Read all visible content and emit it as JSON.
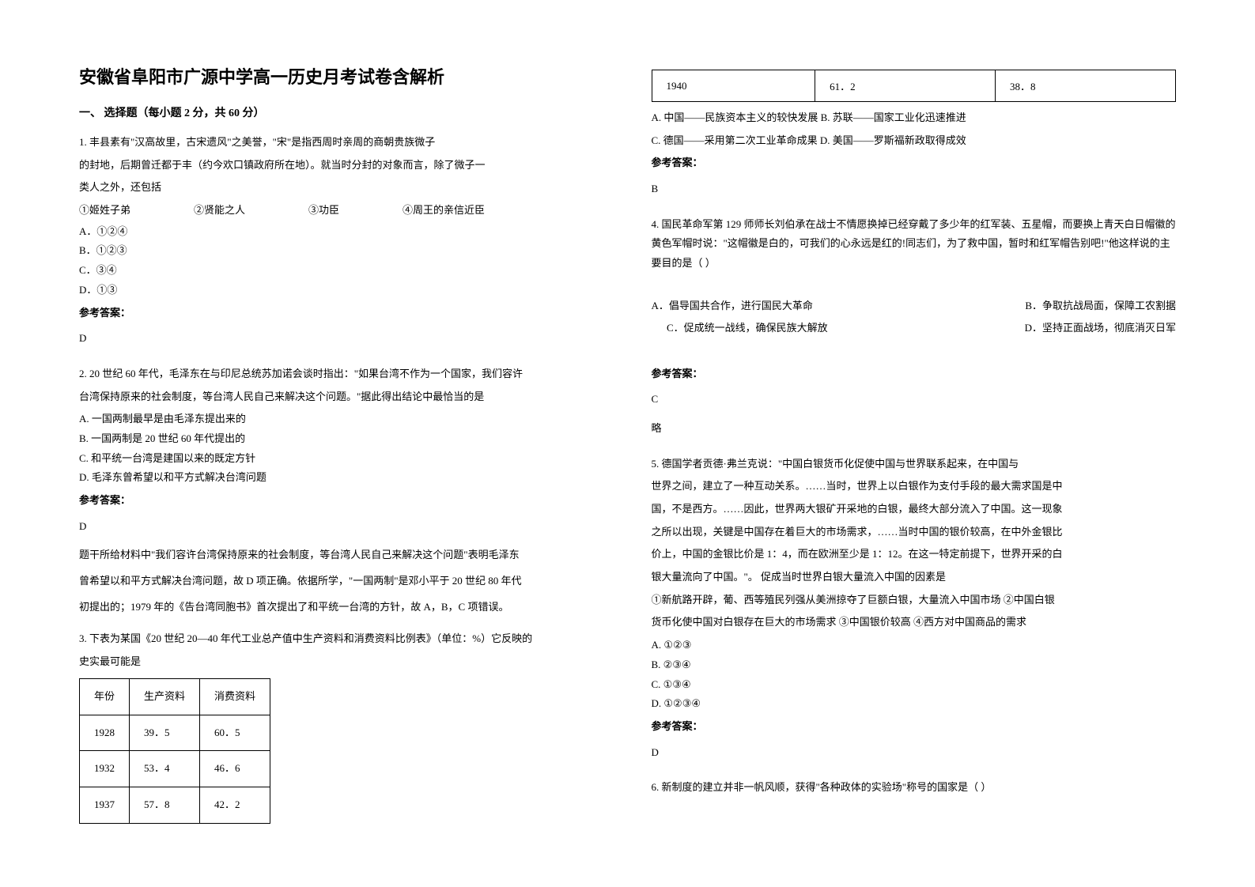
{
  "title": "安徽省阜阳市广源中学高一历史月考试卷含解析",
  "section1": "一、 选择题（每小题 2 分，共 60 分）",
  "q1": {
    "text1": "1. 丰县素有\"汉高故里，古宋遗风\"之美誉，\"宋\"是指西周时亲周的商朝贵族微子",
    "text2": "的封地，后期曾迁都于丰（约今欢口镇政府所在地）。就当时分封的对象而言，除了微子一",
    "text3": "类人之外，还包括",
    "choices": {
      "c1": "①姬姓子弟",
      "c2": "②贤能之人",
      "c3": "③功臣",
      "c4": "④周王的亲信近臣"
    },
    "optA": "A．①②④",
    "optB": "B．①②③",
    "optC": "C．③④",
    "optD": "D．①③",
    "answerLabel": "参考答案：",
    "answer": "D"
  },
  "q2": {
    "text1": "2. 20 世纪 60 年代，毛泽东在与印尼总统苏加诺会谈时指出：\"如果台湾不作为一个国家，我们容许",
    "text2": "台湾保持原来的社会制度，等台湾人民自己来解决这个问题。\"据此得出结论中最恰当的是",
    "optA": "A. 一国两制最早是由毛泽东提出来的",
    "optB": "B. 一国两制是 20 世纪 60 年代提出的",
    "optC": "C. 和平统一台湾是建国以来的既定方针",
    "optD": "D. 毛泽东曾希望以和平方式解决台湾问题",
    "answerLabel": "参考答案：",
    "answer": "D",
    "exp1": "题干所给材料中\"我们容许台湾保持原来的社会制度，等台湾人民自己来解决这个问题\"表明毛泽东",
    "exp2": "曾希望以和平方式解决台湾问题，故 D 项正确。依据所学，\"一国两制\"是邓小平于 20 世纪 80 年代",
    "exp3": "初提出的；1979 年的《告台湾同胞书》首次提出了和平统一台湾的方针，故 A，B，C 项错误。"
  },
  "q3": {
    "text1": "3. 下表为某国《20 世纪 20—40 年代工业总产值中生产资料和消费资料比例表》（单位：%）它反映的",
    "text2": "史实最可能是",
    "table": {
      "header": {
        "col1": "年份",
        "col2": "生产资料",
        "col3": "消费资料"
      },
      "rows": [
        {
          "col1": "1928",
          "col2": "39．5",
          "col3": "60．5"
        },
        {
          "col1": "1932",
          "col2": "53．4",
          "col3": "46．6"
        },
        {
          "col1": "1937",
          "col2": "57．8",
          "col3": "42．2"
        },
        {
          "col1": "1940",
          "col2": "61．2",
          "col3": "38．8"
        }
      ]
    },
    "optA": "A. 中国——民族资本主义的较快发展 B. 苏联——国家工业化迅速推进",
    "optC": "C. 德国——采用第二次工业革命成果 D. 美国——罗斯福新政取得成效",
    "answerLabel": "参考答案：",
    "answer": "B"
  },
  "q4": {
    "text1": "4. 国民革命军第 129 师师长刘伯承在战士不情愿换掉已经穿戴了多少年的红军装、五星帽，而要换上青天白日帽徽的黄色军帽时说：\"这帽徽是白的，可我们的心永远是红的!同志们，为了救中国，暂时和红军帽告别吧!\"他这样说的主要目的是（    ）",
    "optA": "A．倡导国共合作，进行国民大革命",
    "optB": "B．争取抗战局面，保障工农割据",
    "optC": "C．促成统一战线，确保民族大解放",
    "optD": "D．坚持正面战场，彻底消灭日军",
    "answerLabel": "参考答案：",
    "answer": "C",
    "note": "略"
  },
  "q5": {
    "text1": "5. 德国学者贡德·弗兰克说：\"中国白银货币化促使中国与世界联系起来，在中国与",
    "text2": "世界之间，建立了一种互动关系。……当时，世界上以白银作为支付手段的最大需求国是中",
    "text3": "国，不是西方。……因此，世界两大银矿开采地的白银，最终大部分流入了中国。这一现象",
    "text4": "之所以出现，关键是中国存在着巨大的市场需求，……当时中国的银价较高，在中外金银比",
    "text5": "价上，中国的金银比价是 1：4，而在欧洲至少是 1：12。在这一特定前提下，世界开采的白",
    "text6": "银大量流向了中国。\"。   促成当时世界白银大量流入中国的因素是",
    "text7": "①新航路开辟，葡、西等殖民列强从美洲掠夺了巨额白银，大量流入中国市场  ②中国白银",
    "text8": "货币化使中国对白银存在巨大的市场需求  ③中国银价较高  ④西方对中国商品的需求",
    "optA": "A.   ①②③",
    "optB": "B.   ②③④",
    "optC": "C.   ①③④",
    "optD": "D.   ①②③④",
    "answerLabel": "参考答案：",
    "answer": "D"
  },
  "q6": {
    "text1": "6. 新制度的建立并非一帆风顺，获得\"各种政体的实验场\"称号的国家是（       ）"
  }
}
